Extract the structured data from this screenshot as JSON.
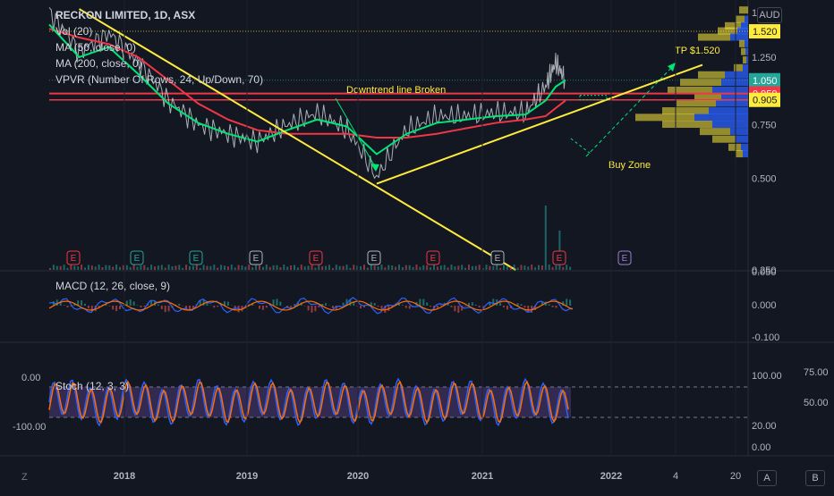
{
  "header": {
    "symbol_title": "RECKON LIMITED, 1D, ASX",
    "currency": "AUD",
    "indicators": [
      "Vol (20)",
      "MA (50, close, 0)",
      "MA (200, close, 0)",
      "VPVR (Number Of Rows, 24, Up/Down, 70)"
    ]
  },
  "annotations": {
    "downtrend_text": "Downtrend line Broken",
    "tp_text": "TP $1.520",
    "buy_zone_text": "Buy Zone"
  },
  "price_axis": {
    "ticks": [
      "1.750",
      "1.250",
      "0.750",
      "0.500",
      "0.250"
    ],
    "badges": [
      {
        "label": "1.520",
        "value": 1.52,
        "bg": "#ffeb3b",
        "fg": "#131722"
      },
      {
        "label": "1.050",
        "value": 1.05,
        "bg": "#26a69a",
        "fg": "#ffffff"
      },
      {
        "label": "0.950",
        "value": 0.95,
        "bg": "#f23645",
        "fg": "#ffffff"
      },
      {
        "label": "0.905",
        "value": 0.905,
        "bg": "#ffeb3b",
        "fg": "#131722"
      }
    ]
  },
  "macd": {
    "label": "MACD (12, 26, close, 9)",
    "ticks": [
      "0.050",
      "0.000",
      "-0.100"
    ]
  },
  "stoch": {
    "label": "Stoch (12, 3, 3)",
    "left_ticks": [
      "0.00",
      "-100.00"
    ],
    "right_ticks_inner": [
      "100.00",
      "20.00",
      "0.00"
    ],
    "right_ticks_outer": [
      "75.00",
      "50.00"
    ]
  },
  "time_axis": {
    "labels": [
      "2018",
      "2019",
      "2020",
      "2021",
      "2022",
      "4",
      "20"
    ]
  },
  "earnings_marker": "E",
  "bottom_buttons": {
    "left": "Z",
    "a": "A",
    "b": "B"
  },
  "colors": {
    "background": "#131722",
    "ma50": "#00e676",
    "ma200": "#f23645",
    "trendline": "#ffeb3b",
    "price_line": "#d1d4dc",
    "macd_line": "#2962ff",
    "signal_line": "#ff6d00",
    "stoch_k": "#2962ff",
    "stoch_d": "#ff6d00",
    "stoch_band": "#7e57c2",
    "vpvr_up": "#2962ff",
    "vpvr_down": "#ffeb3b",
    "arrow": "#00e676"
  },
  "chart_data": {
    "type": "line",
    "title": "RECKON LIMITED, 1D, ASX",
    "y_scale": "log",
    "ylim": [
      0.25,
      1.85
    ],
    "x_labels": [
      "2018",
      "2019",
      "2020",
      "2021",
      "2022"
    ],
    "price_series": {
      "x": [
        "2017-06",
        "2017-09",
        "2017-12",
        "2018-03",
        "2018-06",
        "2018-09",
        "2018-12",
        "2019-03",
        "2019-06",
        "2019-09",
        "2019-12",
        "2020-03",
        "2020-06",
        "2020-09",
        "2020-12",
        "2021-03",
        "2021-06",
        "2021-08",
        "2021-09",
        "2021-10"
      ],
      "values": [
        1.75,
        1.3,
        1.5,
        1.2,
        0.9,
        0.75,
        0.7,
        0.66,
        0.75,
        0.82,
        0.72,
        0.5,
        0.72,
        0.8,
        0.8,
        0.82,
        0.82,
        1.0,
        1.2,
        1.05
      ]
    },
    "ma50_values": [
      1.6,
      1.25,
      1.35,
      1.1,
      0.88,
      0.76,
      0.7,
      0.66,
      0.72,
      0.78,
      0.74,
      0.6,
      0.7,
      0.76,
      0.78,
      0.8,
      0.81,
      0.9,
      1.0,
      1.05
    ],
    "ma200_values": [
      1.55,
      1.45,
      1.38,
      1.25,
      1.05,
      0.88,
      0.78,
      0.72,
      0.7,
      0.7,
      0.7,
      0.68,
      0.68,
      0.7,
      0.73,
      0.76,
      0.78,
      0.8,
      0.85,
      0.9
    ],
    "horizontal_levels": [
      1.52,
      0.95,
      0.905
    ],
    "macd_range": [
      -0.1,
      0.05
    ],
    "stoch_range": [
      0,
      100
    ],
    "legend": "top-left"
  }
}
